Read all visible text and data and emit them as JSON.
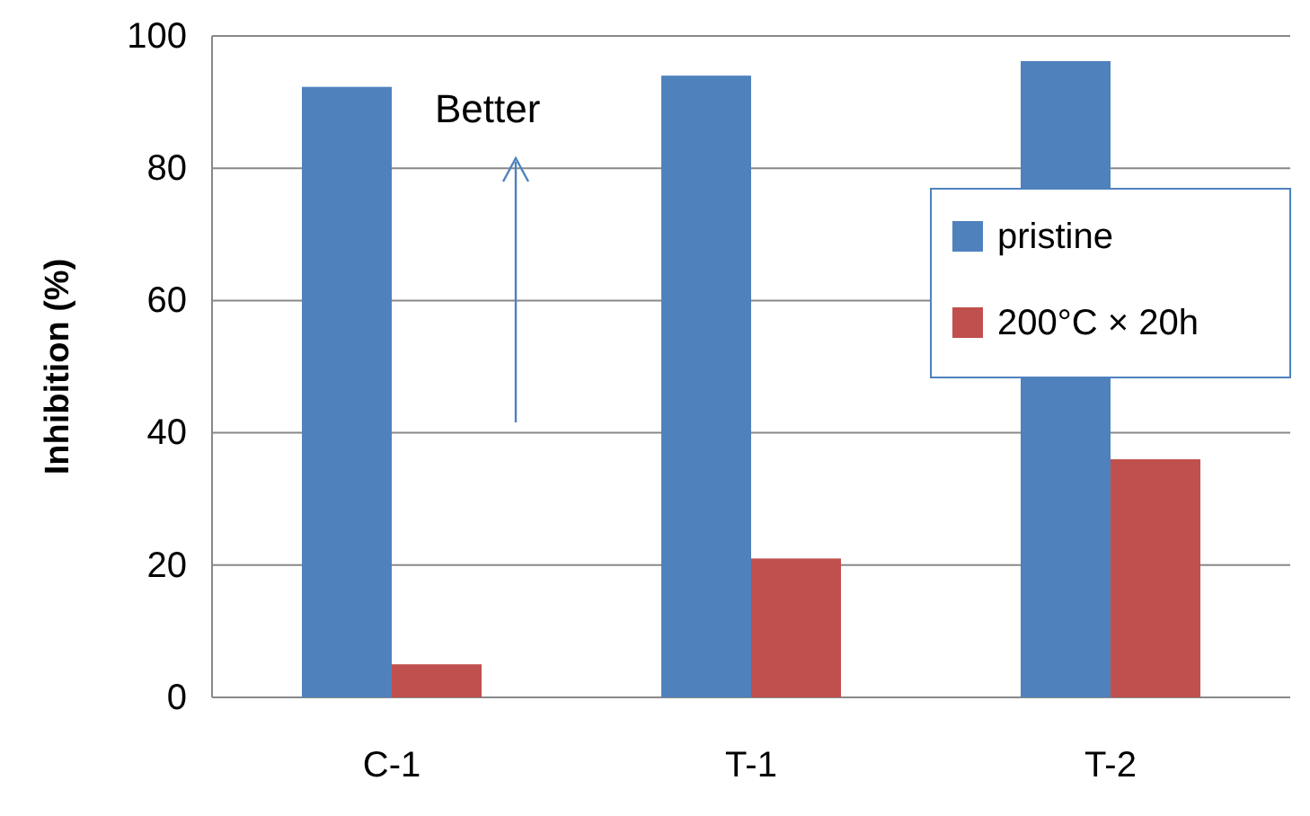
{
  "chart_data": {
    "type": "bar",
    "ylabel": "Inhibition (%)",
    "categories": [
      "C-1",
      "T-1",
      "T-2"
    ],
    "series": [
      {
        "name": "pristine",
        "color": "#4f81bd",
        "values": [
          92.3,
          94,
          96.2
        ]
      },
      {
        "name": "200°C × 20h",
        "color": "#c0504d",
        "values": [
          5,
          21,
          36
        ]
      }
    ],
    "ylim": [
      0,
      100
    ],
    "yticks": [
      0,
      20,
      40,
      60,
      80,
      100
    ],
    "grid": "y",
    "legend": "right",
    "annotations": [
      "Better"
    ]
  }
}
